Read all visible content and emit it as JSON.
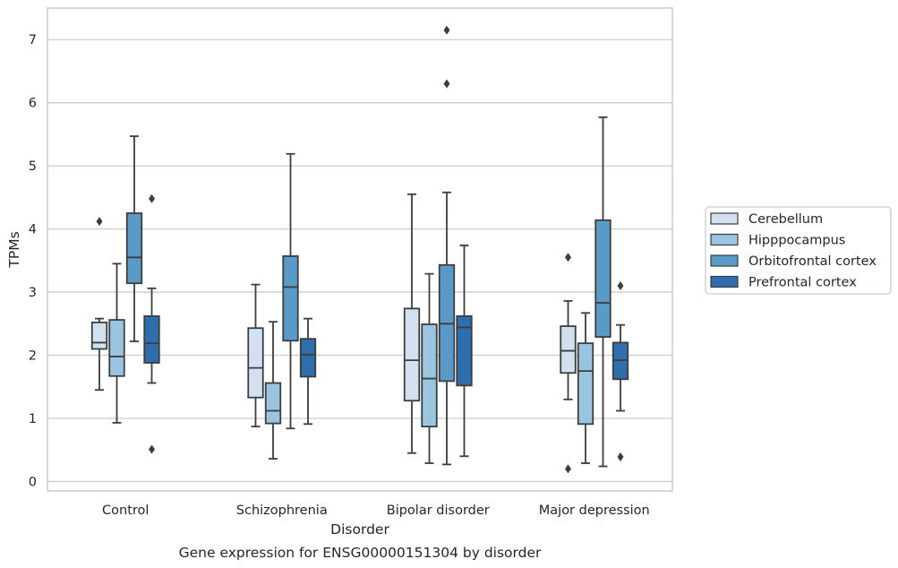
{
  "chart_data": {
    "type": "box",
    "title": "",
    "caption": "Gene expression for ENSG00000151304 by disorder",
    "xlabel": "Disorder",
    "ylabel": "TPMs",
    "ylim": [
      -0.15,
      7.5
    ],
    "yticks": [
      0,
      1,
      2,
      3,
      4,
      5,
      6,
      7
    ],
    "grid": "horizontal",
    "legend_position": "right",
    "categories": [
      "Control",
      "Schizophrenia",
      "Bipolar disorder",
      "Major depression"
    ],
    "series": [
      {
        "name": "Cerebellum",
        "color": "#d1e1ef",
        "boxes": [
          {
            "whislo": 1.45,
            "q1": 2.1,
            "med": 2.2,
            "q3": 2.52,
            "whishi": 2.58,
            "fliers": [
              4.12
            ]
          },
          {
            "whislo": 0.87,
            "q1": 1.33,
            "med": 1.8,
            "q3": 2.43,
            "whishi": 3.12,
            "fliers": []
          },
          {
            "whislo": 0.45,
            "q1": 1.28,
            "med": 1.92,
            "q3": 2.74,
            "whishi": 4.55,
            "fliers": []
          },
          {
            "whislo": 1.3,
            "q1": 1.72,
            "med": 2.07,
            "q3": 2.46,
            "whishi": 2.86,
            "fliers": [
              3.55,
              0.2
            ]
          }
        ]
      },
      {
        "name": "Hipppocampus",
        "color": "#9ac5e0",
        "boxes": [
          {
            "whislo": 0.93,
            "q1": 1.67,
            "med": 1.98,
            "q3": 2.56,
            "whishi": 3.45,
            "fliers": []
          },
          {
            "whislo": 0.36,
            "q1": 0.92,
            "med": 1.12,
            "q3": 1.56,
            "whishi": 2.53,
            "fliers": []
          },
          {
            "whislo": 0.29,
            "q1": 0.87,
            "med": 1.63,
            "q3": 2.49,
            "whishi": 3.29,
            "fliers": []
          },
          {
            "whislo": 0.29,
            "q1": 0.91,
            "med": 1.75,
            "q3": 2.19,
            "whishi": 2.67,
            "fliers": []
          }
        ]
      },
      {
        "name": "Orbitofrontal cortex",
        "color": "#5a9ac9",
        "boxes": [
          {
            "whislo": 2.22,
            "q1": 3.14,
            "med": 3.55,
            "q3": 4.25,
            "whishi": 5.47,
            "fliers": []
          },
          {
            "whislo": 0.84,
            "q1": 2.23,
            "med": 3.08,
            "q3": 3.57,
            "whishi": 5.19,
            "fliers": []
          },
          {
            "whislo": 0.27,
            "q1": 1.59,
            "med": 2.5,
            "q3": 3.43,
            "whishi": 4.58,
            "fliers": [
              7.15,
              6.3
            ]
          },
          {
            "whislo": 0.24,
            "q1": 2.29,
            "med": 2.83,
            "q3": 4.14,
            "whishi": 5.77,
            "fliers": []
          }
        ]
      },
      {
        "name": "Prefrontal cortex",
        "color": "#2f6ead",
        "boxes": [
          {
            "whislo": 1.56,
            "q1": 1.88,
            "med": 2.19,
            "q3": 2.62,
            "whishi": 3.06,
            "fliers": [
              4.48,
              0.51
            ]
          },
          {
            "whislo": 0.91,
            "q1": 1.66,
            "med": 2.01,
            "q3": 2.26,
            "whishi": 2.58,
            "fliers": []
          },
          {
            "whislo": 0.4,
            "q1": 1.52,
            "med": 2.44,
            "q3": 2.62,
            "whishi": 3.74,
            "fliers": []
          },
          {
            "whislo": 1.12,
            "q1": 1.62,
            "med": 1.92,
            "q3": 2.2,
            "whishi": 2.48,
            "fliers": [
              3.1,
              0.39
            ]
          }
        ]
      }
    ]
  }
}
